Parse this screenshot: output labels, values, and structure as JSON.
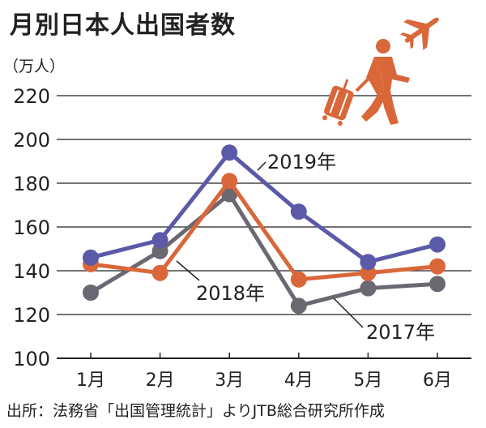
{
  "title": "月別日本人出国者数",
  "unit_label": "（万人）",
  "source": "出所：法務省「出国管理統計」よりJTB総合研究所作成",
  "icons": [
    "traveler-with-suitcase-icon",
    "airplane-icon"
  ],
  "colors": {
    "2019年": "#5b5aa8",
    "2018年": "#d9673a",
    "2017年": "#6a6870",
    "icon": "#d9673a"
  },
  "chart_data": {
    "type": "line",
    "title": "月別日本人出国者数",
    "ylabel": "（万人）",
    "categories": [
      "1月",
      "2月",
      "3月",
      "4月",
      "5月",
      "6月"
    ],
    "ylim": [
      100,
      220
    ],
    "yticks": [
      "100",
      "120",
      "140",
      "160",
      "180",
      "200",
      "220"
    ],
    "grid": true,
    "series": [
      {
        "name": "2017年",
        "values": [
          130,
          149,
          175,
          124,
          132,
          134
        ]
      },
      {
        "name": "2018年",
        "values": [
          143,
          139,
          181,
          136,
          139,
          142
        ]
      },
      {
        "name": "2019年",
        "values": [
          146,
          154,
          194,
          167,
          144,
          152
        ]
      }
    ]
  }
}
